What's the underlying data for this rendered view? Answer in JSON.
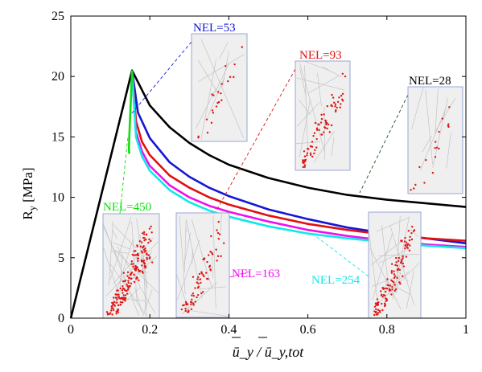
{
  "chart_data": {
    "type": "line",
    "xlabel_html": "ū_y / ū_y,tot",
    "ylabel": "R",
    "ylabel_sub": "y",
    "ylabel_unit": " [MPa]",
    "xlim": [
      0,
      1
    ],
    "ylim": [
      0,
      25
    ],
    "xticks": [
      "0",
      "0.2",
      "0.4",
      "0.6",
      "0.8",
      "1"
    ],
    "yticks": [
      "0",
      "5",
      "10",
      "15",
      "20",
      "25"
    ],
    "grid": false,
    "series": [
      {
        "name": "NEL=28",
        "color": "#000000",
        "x": [
          0,
          0.155,
          0.2,
          0.25,
          0.3,
          0.35,
          0.4,
          0.5,
          0.6,
          0.7,
          0.8,
          0.9,
          1.0
        ],
        "y": [
          0,
          20.5,
          17.6,
          15.8,
          14.5,
          13.5,
          12.7,
          11.6,
          10.8,
          10.2,
          9.8,
          9.5,
          9.2
        ]
      },
      {
        "name": "NEL=53",
        "color": "#1515d6",
        "x": [
          0.155,
          0.17,
          0.2,
          0.25,
          0.3,
          0.35,
          0.4,
          0.5,
          0.6,
          0.7,
          0.8,
          0.9,
          1.0
        ],
        "y": [
          20.5,
          17.0,
          14.9,
          12.9,
          11.7,
          10.8,
          10.1,
          9.0,
          8.2,
          7.5,
          7.0,
          6.6,
          6.2
        ]
      },
      {
        "name": "NEL=93",
        "color": "#e01010",
        "x": [
          0.155,
          0.165,
          0.18,
          0.2,
          0.25,
          0.3,
          0.35,
          0.4,
          0.5,
          0.6,
          0.7,
          0.8,
          0.9,
          1.0
        ],
        "y": [
          20.5,
          16.3,
          14.6,
          13.5,
          11.8,
          10.8,
          10.0,
          9.4,
          8.5,
          7.8,
          7.3,
          6.9,
          6.6,
          6.4
        ]
      },
      {
        "name": "NEL=163",
        "color": "#ee10ee",
        "x": [
          0.155,
          0.165,
          0.18,
          0.2,
          0.25,
          0.3,
          0.35,
          0.4,
          0.5,
          0.6,
          0.7,
          0.8,
          0.9,
          1.0
        ],
        "y": [
          20.5,
          15.4,
          13.8,
          12.6,
          11.0,
          10.0,
          9.3,
          8.8,
          8.0,
          7.3,
          6.8,
          6.4,
          6.1,
          5.9
        ]
      },
      {
        "name": "NEL=254",
        "color": "#10e8e8",
        "x": [
          0.155,
          0.165,
          0.18,
          0.2,
          0.25,
          0.3,
          0.35,
          0.4,
          0.5,
          0.6,
          0.7,
          0.8,
          0.9,
          1.0
        ],
        "y": [
          20.5,
          15.0,
          13.4,
          12.2,
          10.6,
          9.6,
          8.9,
          8.4,
          7.6,
          7.0,
          6.6,
          6.3,
          6.0,
          5.8
        ]
      },
      {
        "name": "NEL=450",
        "color": "#10dd10",
        "x": [
          0.155,
          0.152,
          0.15,
          0.148,
          0.147,
          0.148
        ],
        "y": [
          20.5,
          18.0,
          16.5,
          15.0,
          14.0,
          13.6
        ]
      }
    ],
    "labels": [
      {
        "text": "NEL=53",
        "color": "#1515d6",
        "series": 1
      },
      {
        "text": "NEL=93",
        "color": "#e01010",
        "series": 2
      },
      {
        "text": "NEL=28",
        "color": "#000000",
        "series": 0
      },
      {
        "text": "NEL=450",
        "color": "#10dd10",
        "series": 5
      },
      {
        "text": "NEL=163",
        "color": "#ee10ee",
        "series": 3
      },
      {
        "text": "NEL=254",
        "color": "#10e8e8",
        "series": 4
      }
    ],
    "insets": [
      {
        "label": "NEL=53",
        "leader_color": "#1515d6",
        "dots": 22
      },
      {
        "label": "NEL=93",
        "leader_color": "#e01010",
        "dots": 75
      },
      {
        "label": "NEL=28",
        "leader_color": "#205020",
        "dots": 18
      },
      {
        "label": "NEL=450",
        "leader_color": "#10dd10",
        "dots": 180
      },
      {
        "label": "NEL=163",
        "leader_color": "#ee10ee",
        "dots": 70
      },
      {
        "label": "NEL=254",
        "leader_color": "#10e8e8",
        "dots": 110
      }
    ]
  }
}
